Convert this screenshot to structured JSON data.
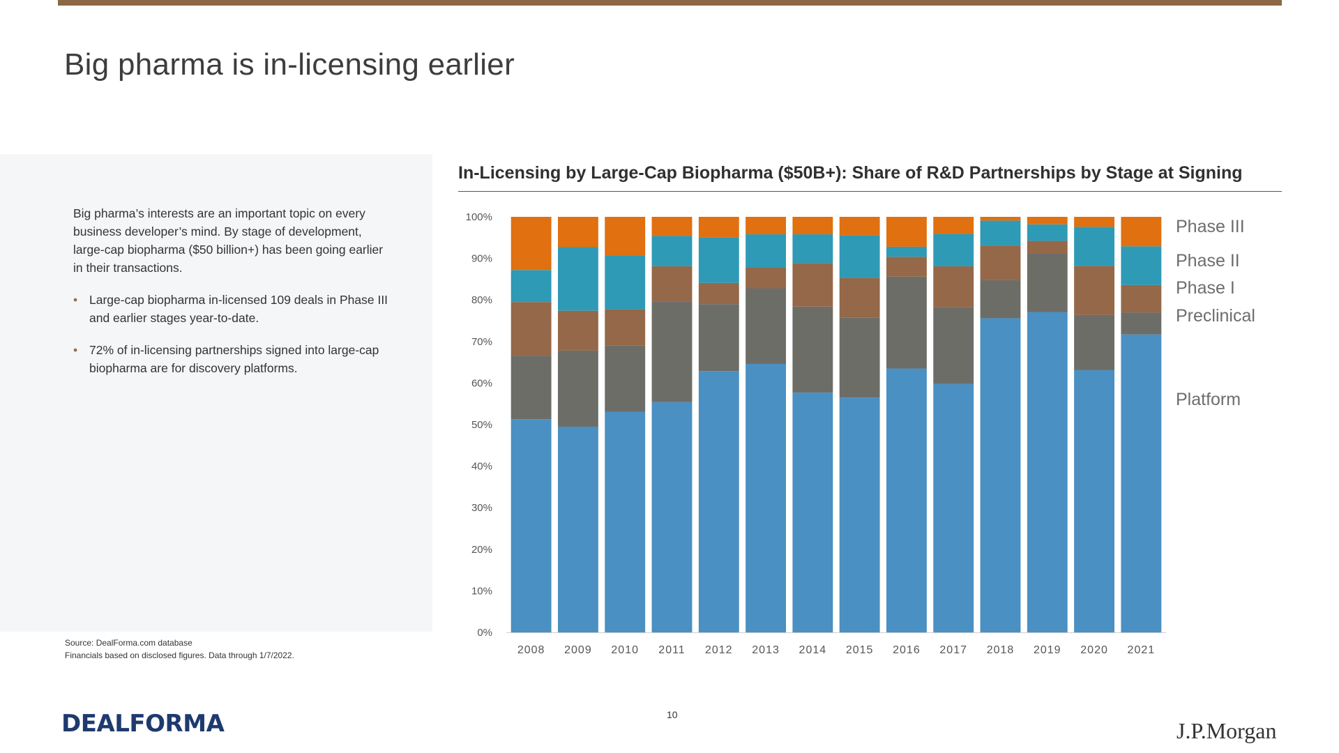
{
  "slide": {
    "title": "Big pharma is in-licensing earlier",
    "intro": "Big pharma’s interests are an important topic on every business developer’s mind. By stage of development, large-cap biopharma ($50 billion+) has been going earlier in their transactions.",
    "bullets": [
      "Large-cap biopharma in-licensed 109 deals in Phase III and earlier stages year-to-date.",
      "72% of in-licensing partnerships signed into large-cap biopharma are for discovery platforms."
    ],
    "source_line1": "Source: DealForma.com database",
    "source_line2": "Financials based on disclosed figures. Data through 1/7/2022.",
    "page_number": "10",
    "logo_left": "DEALFORMA",
    "logo_right": "J.P.Morgan"
  },
  "colors": {
    "accent_rule": "#8c6844",
    "platform": "#4a90c2",
    "preclinical": "#6d6d68",
    "phase1": "#946848",
    "phase2": "#2e9ab6",
    "phase3": "#e07010"
  },
  "chart_data": {
    "type": "bar",
    "stacked": true,
    "title": "In-Licensing by Large-Cap Biopharma ($50B+): Share of R&D Partnerships by Stage at Signing",
    "xlabel": "",
    "ylabel": "",
    "ylim": [
      0,
      100
    ],
    "y_ticks": [
      "0%",
      "10%",
      "20%",
      "30%",
      "40%",
      "50%",
      "60%",
      "70%",
      "80%",
      "90%",
      "100%"
    ],
    "grid": false,
    "legend_position": "right",
    "categories": [
      "2008",
      "2009",
      "2010",
      "2011",
      "2012",
      "2013",
      "2014",
      "2015",
      "2016",
      "2017",
      "2018",
      "2019",
      "2020",
      "2021"
    ],
    "series": [
      {
        "name": "Platform",
        "color": "#4a90c2",
        "values": [
          51.3,
          49.5,
          53.1,
          55.4,
          62.9,
          64.6,
          57.7,
          56.5,
          63.5,
          59.8,
          75.6,
          77.1,
          63.1,
          71.7
        ]
      },
      {
        "name": "Preclinical",
        "color": "#6d6d68",
        "values": [
          15.3,
          18.3,
          15.9,
          24.2,
          16.1,
          18.2,
          20.7,
          19.2,
          22.1,
          18.5,
          9.2,
          14.1,
          13.3,
          5.3
        ]
      },
      {
        "name": "Phase I",
        "color": "#946848",
        "values": [
          12.9,
          9.6,
          8.8,
          8.5,
          5.1,
          5.1,
          10.5,
          9.6,
          4.8,
          9.8,
          8.3,
          3.0,
          11.8,
          6.6
        ]
      },
      {
        "name": "Phase II",
        "color": "#2e9ab6",
        "values": [
          7.7,
          15.3,
          12.8,
          7.3,
          11.0,
          7.9,
          6.9,
          10.3,
          2.4,
          7.8,
          6.0,
          4.0,
          9.4,
          9.3
        ]
      },
      {
        "name": "Phase III",
        "color": "#e07010",
        "values": [
          12.8,
          7.3,
          9.4,
          4.6,
          4.9,
          4.2,
          4.2,
          4.4,
          7.2,
          4.1,
          0.9,
          1.8,
          2.4,
          7.1
        ]
      }
    ],
    "legend_labels": [
      "Phase III",
      "Phase II",
      "Phase I",
      "Preclinical",
      "Platform"
    ]
  }
}
